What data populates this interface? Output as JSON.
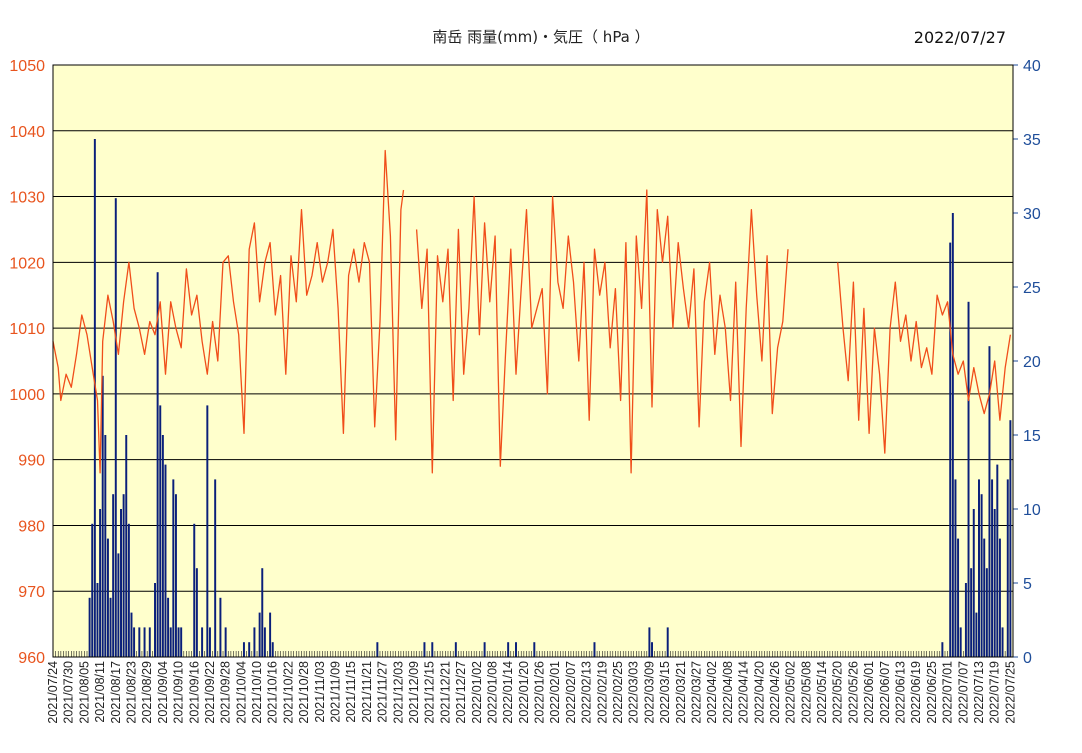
{
  "chart_data": {
    "type": "line",
    "title": "南岳 雨量(mm)・気圧（ hPa ）",
    "date_label": "2022/07/27",
    "y_left": {
      "ylim": [
        960,
        1050
      ],
      "ticks": [
        960,
        970,
        980,
        990,
        1000,
        1010,
        1020,
        1030,
        1040,
        1050
      ],
      "color": "#E8541E"
    },
    "y_right": {
      "ylim": [
        0,
        40
      ],
      "ticks": [
        0,
        5,
        10,
        15,
        20,
        25,
        30,
        35,
        40
      ],
      "color": "#1F4E9A"
    },
    "x": {
      "start": "2021/07/24",
      "end": "2022/07/25",
      "ticks": [
        "2021/07/24",
        "2021/07/30",
        "2021/08/05",
        "2021/08/11",
        "2021/08/17",
        "2021/08/23",
        "2021/08/29",
        "2021/09/04",
        "2021/09/10",
        "2021/09/16",
        "2021/09/22",
        "2021/09/28",
        "2021/10/04",
        "2021/10/10",
        "2021/10/16",
        "2021/10/22",
        "2021/10/28",
        "2021/11/03",
        "2021/11/09",
        "2021/11/15",
        "2021/11/21",
        "2021/11/27",
        "2021/12/03",
        "2021/12/09",
        "2021/12/15",
        "2021/12/21",
        "2021/12/27",
        "2022/01/02",
        "2022/01/08",
        "2022/01/14",
        "2022/01/20",
        "2022/01/26",
        "2022/02/01",
        "2022/02/07",
        "2022/02/13",
        "2022/02/19",
        "2022/02/25",
        "2022/03/03",
        "2022/03/09",
        "2022/03/15",
        "2022/03/21",
        "2022/03/27",
        "2022/04/02",
        "2022/04/08",
        "2022/04/14",
        "2022/04/20",
        "2022/04/26",
        "2022/05/02",
        "2022/05/08",
        "2022/05/14",
        "2022/05/20",
        "2022/05/26",
        "2022/06/01",
        "2022/06/07",
        "2022/06/13",
        "2022/06/19",
        "2022/06/25",
        "2022/07/01",
        "2022/07/07",
        "2022/07/13",
        "2022/07/19",
        "2022/07/25"
      ]
    },
    "grid": true,
    "background": "#FFFFCC",
    "series": [
      {
        "axis": "left",
        "kind": "line",
        "color": "#F04E1A",
        "points": [
          [
            "2021/07/24",
            1008
          ],
          [
            "2021/07/26",
            1004
          ],
          [
            "2021/07/27",
            999
          ],
          [
            "2021/07/29",
            1003
          ],
          [
            "2021/07/31",
            1001
          ],
          [
            "2021/08/02",
            1006
          ],
          [
            "2021/08/04",
            1012
          ],
          [
            "2021/08/06",
            1009
          ],
          [
            "2021/08/08",
            1004
          ],
          [
            "2021/08/10",
            999
          ],
          [
            "2021/08/11",
            988
          ],
          [
            "2021/08/12",
            1008
          ],
          [
            "2021/08/14",
            1015
          ],
          [
            "2021/08/16",
            1011
          ],
          [
            "2021/08/18",
            1006
          ],
          [
            "2021/08/20",
            1014
          ],
          [
            "2021/08/22",
            1020
          ],
          [
            "2021/08/24",
            1013
          ],
          [
            "2021/08/26",
            1010
          ],
          [
            "2021/08/28",
            1006
          ],
          [
            "2021/08/30",
            1011
          ],
          [
            "2021/09/01",
            1009
          ],
          [
            "2021/09/03",
            1014
          ],
          [
            "2021/09/05",
            1003
          ],
          [
            "2021/09/07",
            1014
          ],
          [
            "2021/09/09",
            1010
          ],
          [
            "2021/09/11",
            1007
          ],
          [
            "2021/09/13",
            1019
          ],
          [
            "2021/09/15",
            1012
          ],
          [
            "2021/09/17",
            1015
          ],
          [
            "2021/09/19",
            1008
          ],
          [
            "2021/09/21",
            1003
          ],
          [
            "2021/09/23",
            1011
          ],
          [
            "2021/09/25",
            1005
          ],
          [
            "2021/09/27",
            1020
          ],
          [
            "2021/09/29",
            1021
          ],
          [
            "2021/10/01",
            1014
          ],
          [
            "2021/10/03",
            1009
          ],
          [
            "2021/10/05",
            994
          ],
          [
            "2021/10/07",
            1022
          ],
          [
            "2021/10/09",
            1026
          ],
          [
            "2021/10/11",
            1014
          ],
          [
            "2021/10/13",
            1020
          ],
          [
            "2021/10/15",
            1023
          ],
          [
            "2021/10/17",
            1012
          ],
          [
            "2021/10/19",
            1018
          ],
          [
            "2021/10/21",
            1003
          ],
          [
            "2021/10/23",
            1021
          ],
          [
            "2021/10/25",
            1014
          ],
          [
            "2021/10/27",
            1028
          ],
          [
            "2021/10/29",
            1015
          ],
          [
            "2021/10/31",
            1018
          ],
          [
            "2021/11/02",
            1023
          ],
          [
            "2021/11/04",
            1017
          ],
          [
            "2021/11/06",
            1020
          ],
          [
            "2021/11/08",
            1025
          ],
          [
            "2021/11/10",
            1013
          ],
          [
            "2021/11/12",
            994
          ],
          [
            "2021/11/14",
            1018
          ],
          [
            "2021/11/16",
            1022
          ],
          [
            "2021/11/18",
            1017
          ],
          [
            "2021/11/20",
            1023
          ],
          [
            "2021/11/22",
            1020
          ],
          [
            "2021/11/24",
            995
          ],
          [
            "2021/11/26",
            1011
          ],
          [
            "2021/11/28",
            1037
          ],
          [
            "2021/11/30",
            1024
          ],
          [
            "2021/12/02",
            993
          ],
          [
            "2021/12/04",
            1028
          ],
          [
            "2021/12/05",
            1031
          ],
          null,
          [
            "2021/12/10",
            1025
          ],
          [
            "2021/12/12",
            1013
          ],
          [
            "2021/12/14",
            1022
          ],
          [
            "2021/12/16",
            988
          ],
          [
            "2021/12/18",
            1021
          ],
          [
            "2021/12/20",
            1014
          ],
          [
            "2021/12/22",
            1022
          ],
          [
            "2021/12/24",
            999
          ],
          [
            "2021/12/26",
            1025
          ],
          [
            "2021/12/28",
            1003
          ],
          [
            "2021/12/30",
            1013
          ],
          [
            "2022/01/01",
            1030
          ],
          [
            "2022/01/03",
            1009
          ],
          [
            "2022/01/05",
            1026
          ],
          [
            "2022/01/07",
            1014
          ],
          [
            "2022/01/09",
            1024
          ],
          [
            "2022/01/11",
            989
          ],
          [
            "2022/01/13",
            1006
          ],
          [
            "2022/01/15",
            1022
          ],
          [
            "2022/01/17",
            1003
          ],
          [
            "2022/01/19",
            1016
          ],
          [
            "2022/01/21",
            1028
          ],
          [
            "2022/01/23",
            1010
          ],
          [
            "2022/01/25",
            1013
          ],
          [
            "2022/01/27",
            1016
          ],
          [
            "2022/01/29",
            1000
          ],
          [
            "2022/01/31",
            1030
          ],
          [
            "2022/02/02",
            1017
          ],
          [
            "2022/02/04",
            1013
          ],
          [
            "2022/02/06",
            1024
          ],
          [
            "2022/02/08",
            1017
          ],
          [
            "2022/02/10",
            1005
          ],
          [
            "2022/02/12",
            1020
          ],
          [
            "2022/02/14",
            996
          ],
          [
            "2022/02/16",
            1022
          ],
          [
            "2022/02/18",
            1015
          ],
          [
            "2022/02/20",
            1020
          ],
          [
            "2022/02/22",
            1007
          ],
          [
            "2022/02/24",
            1016
          ],
          [
            "2022/02/26",
            999
          ],
          [
            "2022/02/28",
            1023
          ],
          [
            "2022/03/02",
            988
          ],
          [
            "2022/03/04",
            1024
          ],
          [
            "2022/03/06",
            1013
          ],
          [
            "2022/03/08",
            1031
          ],
          [
            "2022/03/10",
            998
          ],
          [
            "2022/03/12",
            1028
          ],
          [
            "2022/03/14",
            1020
          ],
          [
            "2022/03/16",
            1027
          ],
          [
            "2022/03/18",
            1010
          ],
          [
            "2022/03/20",
            1023
          ],
          [
            "2022/03/22",
            1016
          ],
          [
            "2022/03/24",
            1010
          ],
          [
            "2022/03/26",
            1019
          ],
          [
            "2022/03/28",
            995
          ],
          [
            "2022/03/30",
            1014
          ],
          [
            "2022/04/01",
            1020
          ],
          [
            "2022/04/03",
            1006
          ],
          [
            "2022/04/05",
            1015
          ],
          [
            "2022/04/07",
            1010
          ],
          [
            "2022/04/09",
            999
          ],
          [
            "2022/04/11",
            1017
          ],
          [
            "2022/04/13",
            992
          ],
          [
            "2022/04/15",
            1013
          ],
          [
            "2022/04/17",
            1028
          ],
          [
            "2022/04/19",
            1015
          ],
          [
            "2022/04/21",
            1005
          ],
          [
            "2022/04/23",
            1021
          ],
          [
            "2022/04/25",
            997
          ],
          [
            "2022/04/27",
            1007
          ],
          [
            "2022/04/29",
            1011
          ],
          [
            "2022/05/01",
            1022
          ],
          null,
          [
            "2022/05/20",
            1020
          ],
          [
            "2022/05/22",
            1010
          ],
          [
            "2022/05/24",
            1002
          ],
          [
            "2022/05/26",
            1017
          ],
          [
            "2022/05/28",
            996
          ],
          [
            "2022/05/30",
            1013
          ],
          [
            "2022/06/01",
            994
          ],
          [
            "2022/06/03",
            1010
          ],
          [
            "2022/06/05",
            1003
          ],
          [
            "2022/06/07",
            991
          ],
          [
            "2022/06/09",
            1010
          ],
          [
            "2022/06/11",
            1017
          ],
          [
            "2022/06/13",
            1008
          ],
          [
            "2022/06/15",
            1012
          ],
          [
            "2022/06/17",
            1005
          ],
          [
            "2022/06/19",
            1011
          ],
          [
            "2022/06/21",
            1004
          ],
          [
            "2022/06/23",
            1007
          ],
          [
            "2022/06/25",
            1003
          ],
          [
            "2022/06/27",
            1015
          ],
          [
            "2022/06/29",
            1012
          ],
          [
            "2022/07/01",
            1014
          ],
          [
            "2022/07/03",
            1006
          ],
          [
            "2022/07/05",
            1003
          ],
          [
            "2022/07/07",
            1005
          ],
          [
            "2022/07/09",
            999
          ],
          [
            "2022/07/11",
            1004
          ],
          [
            "2022/07/13",
            1000
          ],
          [
            "2022/07/15",
            997
          ],
          [
            "2022/07/17",
            1000
          ],
          [
            "2022/07/19",
            1005
          ],
          [
            "2022/07/21",
            996
          ],
          [
            "2022/07/23",
            1004
          ],
          [
            "2022/07/25",
            1009
          ]
        ]
      },
      {
        "axis": "right",
        "kind": "bar",
        "color": "#0A1F7A",
        "points": [
          [
            "2021/08/07",
            4
          ],
          [
            "2021/08/08",
            9
          ],
          [
            "2021/08/09",
            35
          ],
          [
            "2021/08/10",
            5
          ],
          [
            "2021/08/11",
            10
          ],
          [
            "2021/08/12",
            19
          ],
          [
            "2021/08/13",
            15
          ],
          [
            "2021/08/14",
            8
          ],
          [
            "2021/08/15",
            4
          ],
          [
            "2021/08/16",
            11
          ],
          [
            "2021/08/17",
            31
          ],
          [
            "2021/08/18",
            7
          ],
          [
            "2021/08/19",
            10
          ],
          [
            "2021/08/20",
            11
          ],
          [
            "2021/08/21",
            15
          ],
          [
            "2021/08/22",
            9
          ],
          [
            "2021/08/23",
            3
          ],
          [
            "2021/08/24",
            2
          ],
          [
            "2021/08/26",
            2
          ],
          [
            "2021/08/28",
            2
          ],
          [
            "2021/08/30",
            2
          ],
          [
            "2021/09/01",
            5
          ],
          [
            "2021/09/02",
            26
          ],
          [
            "2021/09/03",
            17
          ],
          [
            "2021/09/04",
            15
          ],
          [
            "2021/09/05",
            13
          ],
          [
            "2021/09/06",
            4
          ],
          [
            "2021/09/07",
            2
          ],
          [
            "2021/09/08",
            12
          ],
          [
            "2021/09/09",
            11
          ],
          [
            "2021/09/10",
            2
          ],
          [
            "2021/09/11",
            2
          ],
          [
            "2021/09/16",
            9
          ],
          [
            "2021/09/17",
            6
          ],
          [
            "2021/09/19",
            2
          ],
          [
            "2021/09/21",
            17
          ],
          [
            "2021/09/22",
            2
          ],
          [
            "2021/09/24",
            12
          ],
          [
            "2021/09/26",
            4
          ],
          [
            "2021/09/28",
            2
          ],
          [
            "2021/10/05",
            1
          ],
          [
            "2021/10/07",
            1
          ],
          [
            "2021/10/09",
            2
          ],
          [
            "2021/10/11",
            3
          ],
          [
            "2021/10/12",
            6
          ],
          [
            "2021/10/13",
            2
          ],
          [
            "2021/10/15",
            3
          ],
          [
            "2021/10/16",
            1
          ],
          [
            "2021/11/25",
            1
          ],
          [
            "2021/12/13",
            1
          ],
          [
            "2021/12/16",
            1
          ],
          [
            "2021/12/25",
            1
          ],
          [
            "2022/01/05",
            1
          ],
          [
            "2022/01/14",
            1
          ],
          [
            "2022/01/17",
            1
          ],
          [
            "2022/01/24",
            1
          ],
          [
            "2022/02/16",
            1
          ],
          [
            "2022/03/09",
            2
          ],
          [
            "2022/03/10",
            1
          ],
          [
            "2022/03/16",
            2
          ],
          [
            "2022/06/29",
            1
          ],
          [
            "2022/07/02",
            28
          ],
          [
            "2022/07/03",
            30
          ],
          [
            "2022/07/04",
            12
          ],
          [
            "2022/07/05",
            8
          ],
          [
            "2022/07/06",
            2
          ],
          [
            "2022/07/08",
            5
          ],
          [
            "2022/07/09",
            24
          ],
          [
            "2022/07/10",
            6
          ],
          [
            "2022/07/11",
            10
          ],
          [
            "2022/07/12",
            3
          ],
          [
            "2022/07/13",
            12
          ],
          [
            "2022/07/14",
            11
          ],
          [
            "2022/07/15",
            8
          ],
          [
            "2022/07/16",
            6
          ],
          [
            "2022/07/17",
            21
          ],
          [
            "2022/07/18",
            12
          ],
          [
            "2022/07/19",
            10
          ],
          [
            "2022/07/20",
            13
          ],
          [
            "2022/07/21",
            8
          ],
          [
            "2022/07/22",
            2
          ],
          [
            "2022/07/24",
            12
          ],
          [
            "2022/07/25",
            16
          ]
        ]
      }
    ]
  }
}
